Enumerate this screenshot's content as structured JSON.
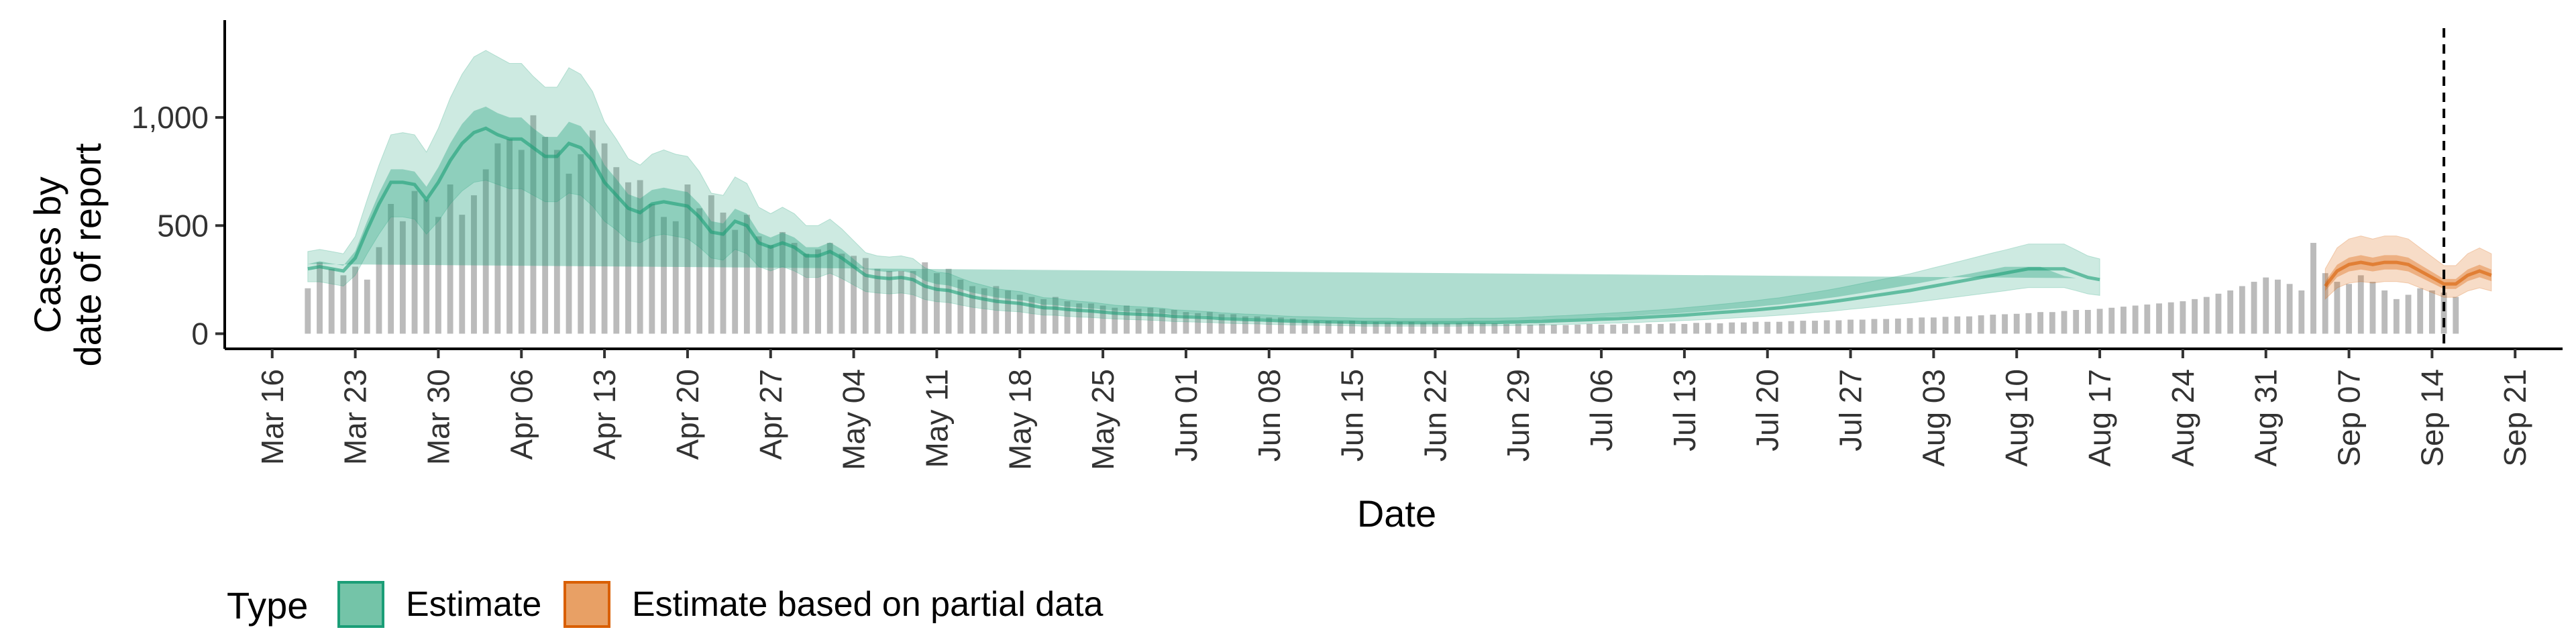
{
  "chart_data": {
    "type": "area",
    "xlabel": "Date",
    "ylabel_line1": "Cases by",
    "ylabel_line2": "date of report",
    "y_ticks": [
      0,
      500,
      1000
    ],
    "y_tick_labels": [
      "0",
      "500",
      "1,000"
    ],
    "ylim": [
      -70,
      1450
    ],
    "x_start": "2020-03-12",
    "x_end": "2020-09-25",
    "x_ticks": [
      "2020-03-16",
      "2020-03-23",
      "2020-03-30",
      "2020-04-06",
      "2020-04-13",
      "2020-04-20",
      "2020-04-27",
      "2020-05-04",
      "2020-05-11",
      "2020-05-18",
      "2020-05-25",
      "2020-06-01",
      "2020-06-08",
      "2020-06-15",
      "2020-06-22",
      "2020-06-29",
      "2020-07-06",
      "2020-07-13",
      "2020-07-20",
      "2020-07-27",
      "2020-08-03",
      "2020-08-10",
      "2020-08-17",
      "2020-08-24",
      "2020-08-31",
      "2020-09-07",
      "2020-09-14",
      "2020-09-21"
    ],
    "x_tick_labels": [
      "Mar 16",
      "Mar 23",
      "Mar 30",
      "Apr 06",
      "Apr 13",
      "Apr 20",
      "Apr 27",
      "May 04",
      "May 11",
      "May 18",
      "May 25",
      "Jun 01",
      "Jun 08",
      "Jun 15",
      "Jun 22",
      "Jun 29",
      "Jul 06",
      "Jul 13",
      "Jul 20",
      "Jul 27",
      "Aug 03",
      "Aug 10",
      "Aug 17",
      "Aug 24",
      "Aug 31",
      "Sep 07",
      "Sep 14",
      "Sep 21"
    ],
    "vline_date": "2020-09-15",
    "legend_position": "bottom",
    "bars": {
      "start_date": "2020-03-19",
      "color": "#bbbbbb",
      "values": [
        210,
        330,
        300,
        270,
        310,
        250,
        400,
        600,
        520,
        660,
        620,
        540,
        690,
        550,
        640,
        760,
        880,
        900,
        850,
        1010,
        910,
        850,
        740,
        830,
        940,
        880,
        770,
        700,
        710,
        600,
        540,
        520,
        690,
        580,
        640,
        560,
        480,
        550,
        450,
        410,
        470,
        420,
        370,
        390,
        420,
        370,
        360,
        350,
        300,
        290,
        290,
        290,
        330,
        280,
        300,
        250,
        220,
        210,
        220,
        200,
        180,
        170,
        160,
        170,
        150,
        140,
        140,
        130,
        120,
        130,
        115,
        120,
        115,
        110,
        100,
        95,
        100,
        90,
        90,
        80,
        80,
        75,
        75,
        70,
        65,
        60,
        60,
        58,
        60,
        58,
        55,
        52,
        55,
        55,
        52,
        50,
        48,
        50,
        52,
        50,
        48,
        45,
        45,
        42,
        45,
        42,
        40,
        42,
        45,
        42,
        42,
        45,
        40,
        45,
        45,
        48,
        45,
        50,
        50,
        48,
        52,
        52,
        55,
        55,
        55,
        58,
        60,
        60,
        62,
        62,
        65,
        65,
        68,
        68,
        70,
        72,
        75,
        75,
        78,
        80,
        80,
        85,
        88,
        90,
        92,
        95,
        100,
        100,
        105,
        110,
        110,
        115,
        120,
        125,
        130,
        135,
        140,
        145,
        150,
        160,
        170,
        185,
        200,
        220,
        240,
        260,
        250,
        230,
        200,
        420,
        280,
        240,
        230,
        270,
        240,
        200,
        160,
        180,
        210,
        200,
        190,
        170
      ]
    },
    "series": [
      {
        "name": "Estimate",
        "fill": "#1b9e77",
        "stroke": "#1b9e77",
        "start_date": "2020-03-19",
        "median": [
          300,
          310,
          300,
          290,
          350,
          480,
          600,
          700,
          700,
          690,
          620,
          700,
          800,
          880,
          930,
          950,
          920,
          900,
          900,
          860,
          820,
          820,
          880,
          860,
          800,
          700,
          640,
          580,
          560,
          600,
          610,
          600,
          590,
          540,
          470,
          460,
          520,
          500,
          420,
          400,
          420,
          400,
          360,
          360,
          380,
          350,
          310,
          270,
          260,
          255,
          260,
          250,
          220,
          205,
          200,
          185,
          170,
          160,
          150,
          145,
          140,
          130,
          120,
          118,
          112,
          108,
          105,
          100,
          95,
          92,
          90,
          88,
          85,
          80,
          78,
          76,
          74,
          70,
          68,
          66,
          64,
          62,
          60,
          58,
          57,
          56,
          55,
          54,
          53,
          52,
          52,
          52,
          51,
          51,
          51,
          51,
          51,
          51,
          52,
          52,
          52,
          53,
          54,
          56,
          57,
          59,
          61,
          63,
          65,
          67,
          69,
          71,
          74,
          77,
          80,
          83,
          86,
          90,
          94,
          98,
          102,
          106,
          110,
          115,
          120,
          126,
          132,
          138,
          145,
          152,
          160,
          168,
          176,
          184,
          192,
          200,
          210,
          220,
          230,
          240,
          250,
          260,
          270,
          280,
          290,
          300,
          300,
          300,
          300,
          280,
          260,
          250
        ],
        "lower50": [
          280,
          285,
          275,
          265,
          320,
          440,
          550,
          640,
          640,
          630,
          560,
          630,
          720,
          790,
          830,
          850,
          820,
          800,
          800,
          770,
          730,
          730,
          780,
          760,
          710,
          620,
          570,
          520,
          500,
          540,
          550,
          540,
          530,
          485,
          420,
          410,
          465,
          445,
          375,
          355,
          375,
          355,
          320,
          320,
          340,
          310,
          275,
          240,
          230,
          225,
          230,
          222,
          195,
          182,
          177,
          164,
          150,
          142,
          133,
          128,
          124,
          115,
          106,
          104,
          99,
          95,
          93,
          88,
          84,
          81,
          79,
          77,
          75,
          70,
          68,
          66,
          65,
          61,
          59,
          58,
          56,
          54,
          52,
          51,
          50,
          49,
          48,
          47,
          46,
          45,
          45,
          45,
          44,
          44,
          44,
          44,
          44,
          44,
          45,
          45,
          45,
          46,
          47,
          49,
          50,
          52,
          54,
          56,
          57,
          59,
          61,
          63,
          66,
          68,
          71,
          74,
          77,
          80,
          84,
          87,
          91,
          95,
          98,
          103,
          107,
          113,
          118,
          124,
          130,
          136,
          143,
          150,
          157,
          164,
          171,
          179,
          188,
          197,
          206,
          215,
          224,
          233,
          242,
          251,
          260,
          270,
          270,
          270,
          270,
          250,
          232,
          222
        ],
        "upper50": [
          322,
          335,
          325,
          315,
          382,
          520,
          650,
          760,
          760,
          750,
          680,
          770,
          880,
          970,
          1030,
          1050,
          1020,
          1000,
          1000,
          950,
          910,
          910,
          980,
          960,
          890,
          780,
          715,
          645,
          625,
          665,
          675,
          665,
          655,
          600,
          520,
          510,
          578,
          555,
          468,
          445,
          468,
          445,
          400,
          400,
          422,
          390,
          345,
          300,
          290,
          284,
          290,
          279,
          245,
          229,
          223,
          207,
          190,
          179,
          168,
          162,
          156,
          146,
          134,
          132,
          125,
          121,
          117,
          112,
          106,
          103,
          101,
          98,
          95,
          90,
          88,
          85,
          83,
          79,
          76,
          74,
          72,
          70,
          68,
          65,
          64,
          63,
          62,
          61,
          60,
          59,
          59,
          59,
          58,
          58,
          58,
          58,
          58,
          58,
          59,
          59,
          59,
          60,
          61,
          63,
          64,
          66,
          69,
          71,
          73,
          75,
          78,
          80,
          83,
          87,
          90,
          93,
          97,
          101,
          106,
          110,
          115,
          119,
          124,
          130,
          135,
          142,
          149,
          156,
          164,
          171,
          180,
          189,
          198,
          207,
          216,
          226,
          236,
          246,
          257,
          267,
          277,
          288,
          298,
          309,
          309,
          309,
          309,
          288,
          267,
          257
        ],
        "lower90": [
          240,
          240,
          230,
          220,
          270,
          370,
          460,
          540,
          540,
          530,
          460,
          520,
          600,
          660,
          700,
          710,
          690,
          670,
          670,
          640,
          610,
          610,
          650,
          640,
          590,
          520,
          480,
          430,
          420,
          450,
          460,
          450,
          440,
          400,
          350,
          340,
          390,
          370,
          310,
          290,
          310,
          290,
          260,
          260,
          280,
          255,
          225,
          195,
          188,
          184,
          188,
          180,
          158,
          148,
          144,
          133,
          122,
          115,
          108,
          104,
          101,
          93,
          86,
          85,
          80,
          77,
          75,
          71,
          68,
          66,
          64,
          62,
          60,
          56,
          55,
          53,
          52,
          49,
          47,
          46,
          45,
          43,
          42,
          40,
          40,
          39,
          38,
          37,
          36,
          35,
          35,
          35,
          35,
          35,
          35,
          35,
          35,
          35,
          36,
          36,
          36,
          37,
          38,
          39,
          40,
          41,
          43,
          44,
          46,
          47,
          49,
          50,
          52,
          54,
          56,
          58,
          61,
          63,
          66,
          69,
          72,
          75,
          78,
          81,
          85,
          89,
          93,
          98,
          102,
          107,
          113,
          118,
          124,
          130,
          136,
          142,
          149,
          156,
          163,
          170,
          177,
          184,
          191,
          198,
          206,
          213,
          213,
          213,
          213,
          199,
          184,
          177
        ],
        "upper90": [
          380,
          390,
          380,
          370,
          450,
          620,
          780,
          920,
          930,
          920,
          840,
          950,
          1090,
          1200,
          1280,
          1310,
          1280,
          1250,
          1250,
          1190,
          1140,
          1140,
          1230,
          1200,
          1120,
          980,
          900,
          810,
          780,
          830,
          850,
          830,
          820,
          750,
          650,
          640,
          725,
          695,
          585,
          555,
          585,
          555,
          500,
          500,
          530,
          485,
          430,
          375,
          360,
          355,
          360,
          348,
          305,
          285,
          279,
          257,
          237,
          223,
          208,
          201,
          195,
          181,
          167,
          164,
          156,
          150,
          146,
          139,
          132,
          128,
          125,
          122,
          118,
          111,
          108,
          105,
          102,
          97,
          94,
          91,
          89,
          86,
          83,
          80,
          79,
          78,
          76,
          75,
          73,
          72,
          72,
          72,
          70,
          70,
          70,
          70,
          70,
          70,
          72,
          72,
          72,
          73,
          74,
          77,
          79,
          82,
          84,
          87,
          90,
          93,
          96,
          99,
          103,
          107,
          111,
          115,
          120,
          125,
          130,
          136,
          141,
          147,
          153,
          160,
          166,
          175,
          183,
          192,
          201,
          211,
          222,
          233,
          244,
          255,
          266,
          277,
          291,
          305,
          318,
          332,
          346,
          360,
          374,
          387,
          401,
          415,
          415,
          415,
          415,
          388,
          360,
          346
        ]
      },
      {
        "name": "Estimate based on partial data",
        "fill": "#d95f02",
        "stroke": "#d95f02",
        "start_date": "2020-09-05",
        "median": [
          220,
          290,
          320,
          330,
          320,
          330,
          330,
          320,
          290,
          260,
          230,
          230,
          270,
          290,
          270
        ],
        "lower50": [
          198,
          261,
          288,
          297,
          288,
          297,
          297,
          288,
          261,
          234,
          207,
          207,
          243,
          261,
          243
        ],
        "upper50": [
          242,
          319,
          352,
          363,
          352,
          363,
          363,
          352,
          319,
          286,
          253,
          253,
          297,
          319,
          297
        ],
        "lower90": [
          160,
          212,
          234,
          241,
          234,
          241,
          241,
          234,
          212,
          190,
          168,
          168,
          197,
          212,
          197
        ],
        "upper90": [
          300,
          397,
          438,
          452,
          438,
          452,
          452,
          438,
          397,
          356,
          315,
          315,
          370,
          397,
          370
        ]
      }
    ]
  },
  "legend": {
    "title": "Type",
    "items": [
      {
        "label": "Estimate",
        "fill": "#74c4a8",
        "stroke": "#1b9e77"
      },
      {
        "label": "Estimate based on partial data",
        "fill": "#e8a065",
        "stroke": "#d95f02"
      }
    ]
  }
}
